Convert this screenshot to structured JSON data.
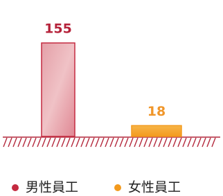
{
  "chart_data": {
    "type": "bar",
    "series": [
      {
        "name": "男性員工",
        "color": "#c42a40",
        "values": [
          155
        ]
      },
      {
        "name": "女性員工",
        "color": "#f39a1e",
        "values": [
          18
        ]
      }
    ]
  }
}
